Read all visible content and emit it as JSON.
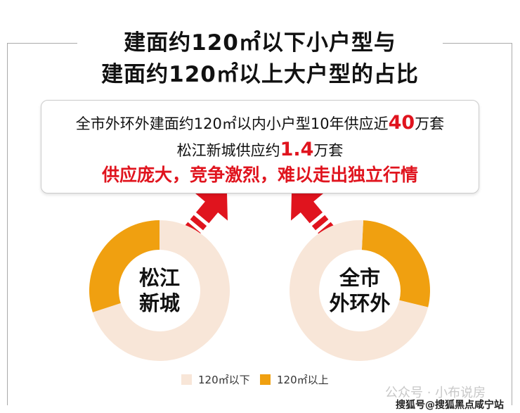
{
  "title": {
    "line1": "建面约120㎡以下小户型与",
    "line2": "建面约120㎡以上大户型的占比"
  },
  "info_box": {
    "line1_prefix": "全市外环外建面约120㎡以内小户型10年供应近",
    "line1_number": "40",
    "line1_suffix": "万套",
    "line2_prefix": "松江新城供应约",
    "line2_number": "1.4",
    "line2_suffix": "万套",
    "line3": "供应庞大，竞争激烈，难以走出独立行情"
  },
  "colors": {
    "below_120": "#f8e6d8",
    "above_120": "#f0a010",
    "accent_red": "#e0141e"
  },
  "chart_data": [
    {
      "type": "pie",
      "donut": true,
      "center_label": [
        "松江",
        "新城"
      ],
      "categories": [
        "120㎡以下",
        "120㎡以上"
      ],
      "values": [
        70,
        30
      ]
    },
    {
      "type": "pie",
      "donut": true,
      "center_label": [
        "全市",
        "外环外"
      ],
      "categories": [
        "120㎡以下",
        "120㎡以上"
      ],
      "values": [
        72,
        28
      ]
    }
  ],
  "legend": [
    {
      "label": "120㎡以下"
    },
    {
      "label": "120㎡以上"
    }
  ],
  "watermark": {
    "wechat": "公众号 · 小布说房",
    "sohu": "搜狐号@搜狐黑点咸宁站"
  }
}
